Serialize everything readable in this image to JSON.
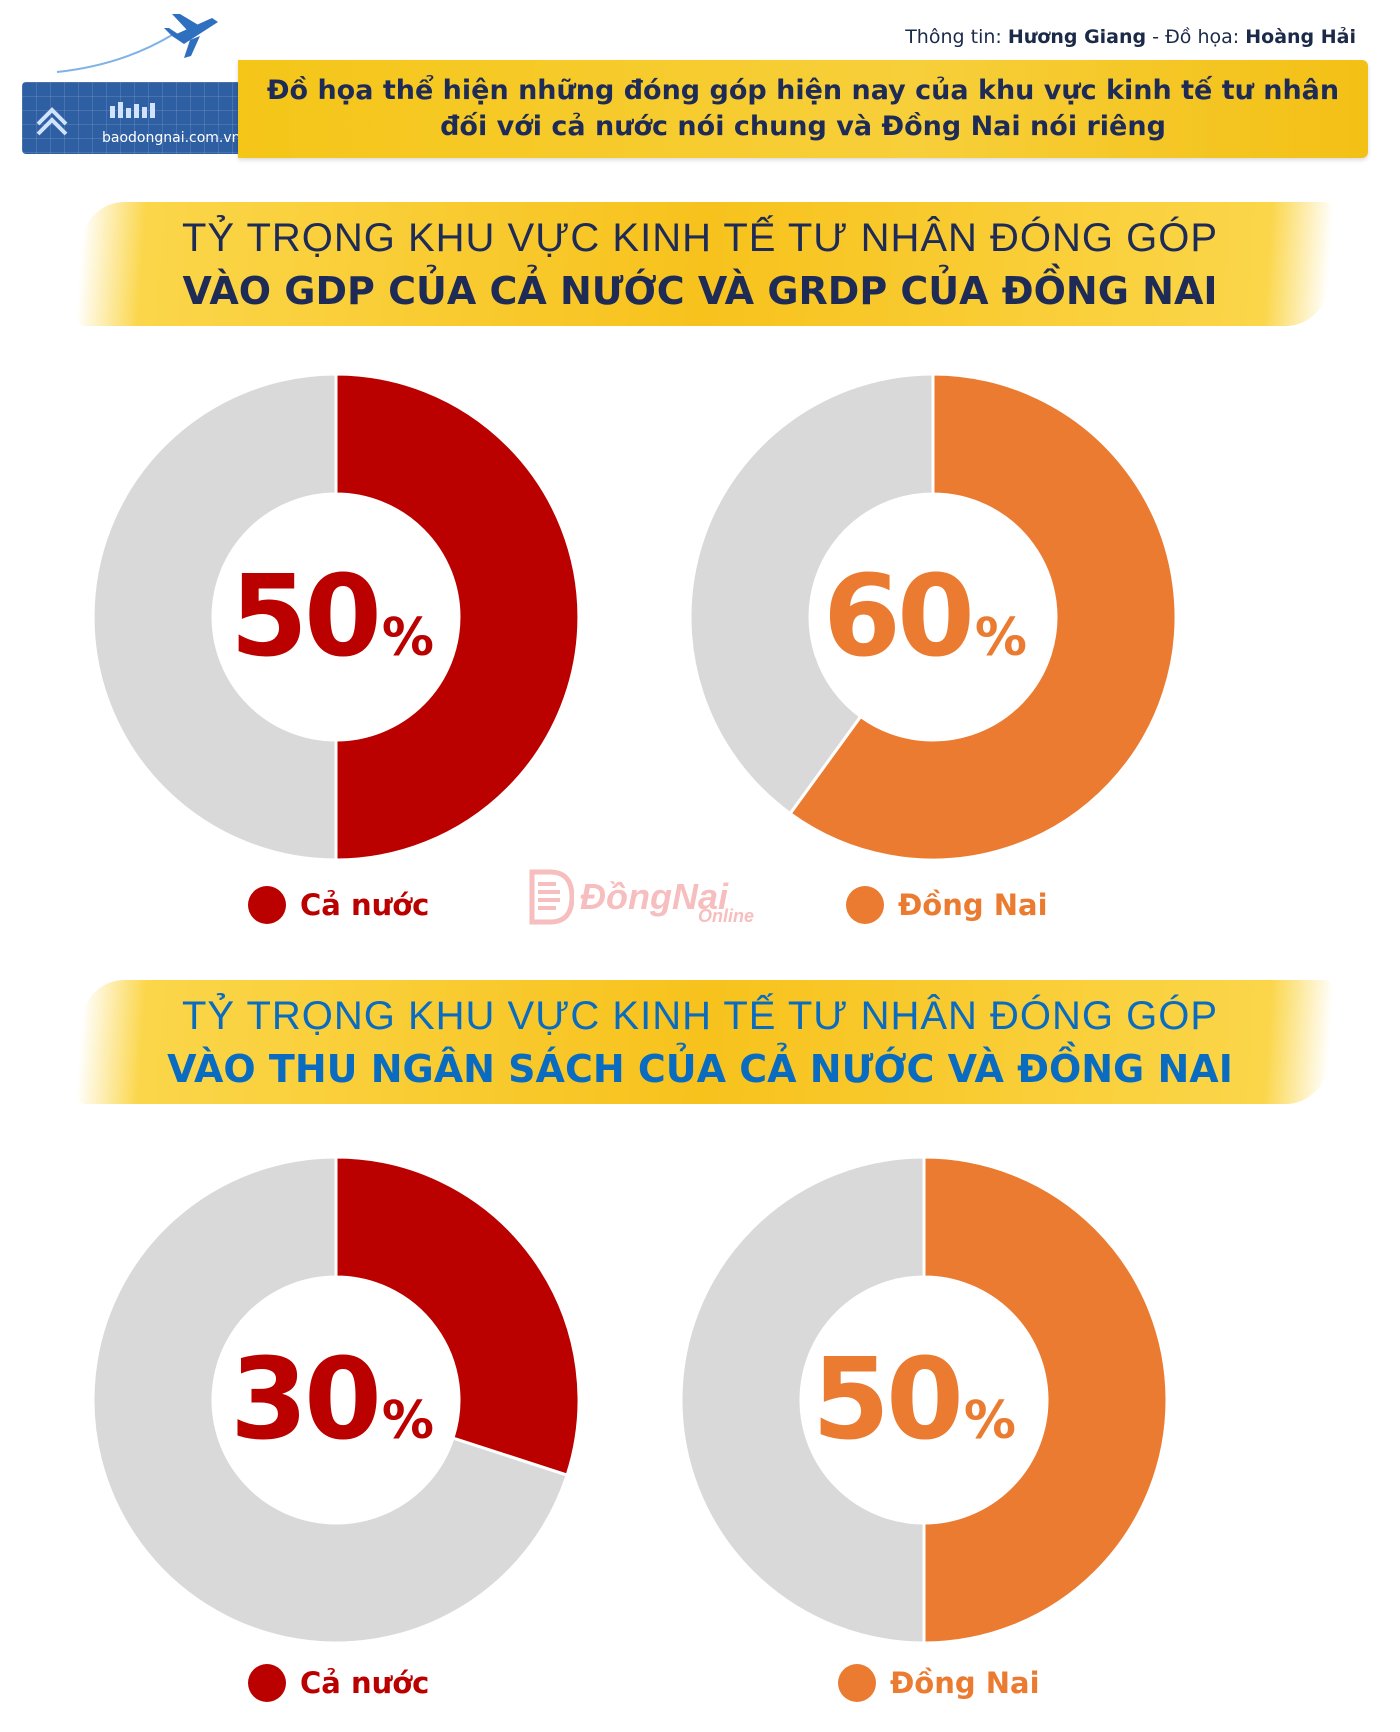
{
  "header": {
    "credit_info_label": "Thông tin:",
    "credit_info_name": "Hương Giang",
    "credit_sep": "-",
    "credit_graphics_label": "Đồ họa:",
    "credit_graphics_name": "Hoàng Hải",
    "site": "baodongnai.com.vn",
    "banner_line1": "Đồ họa thể hiện những đóng góp hiện nay của khu vực kinh tế tư nhân",
    "banner_line2": "đối với cả nước nói chung và Đồng Nai nói riêng"
  },
  "colors": {
    "national": "#bb0000",
    "dongnai": "#ea7b30",
    "remainder": "#d9d9d9",
    "title_dark": "#1e2b57",
    "title_blue": "#0a6cc0",
    "banner": "#f5c518"
  },
  "sections": [
    {
      "title_line1": "TỶ TRỌNG KHU VỰC KINH TẾ TƯ NHÂN ĐÓNG GÓP",
      "title_line2": "VÀO GDP CỦA CẢ NƯỚC VÀ GRDP CỦA ĐỒNG NAI",
      "legend": [
        "Cả nước",
        "Đồng Nai"
      ]
    },
    {
      "title_line1": "TỶ TRỌNG KHU VỰC KINH TẾ TƯ NHÂN ĐÓNG GÓP",
      "title_line2": "VÀO THU NGÂN SÁCH CỦA CẢ NƯỚC VÀ ĐỒNG NAI",
      "legend": [
        "Cả nước",
        "Đồng Nai"
      ]
    }
  ],
  "watermark": {
    "name": "ĐồngNai",
    "sub": "Online"
  },
  "chart_data": [
    {
      "type": "pie",
      "series": [
        {
          "name": "Cả nước",
          "value": 50
        }
      ],
      "label": "50",
      "unit": "%"
    },
    {
      "type": "pie",
      "series": [
        {
          "name": "Đồng Nai",
          "value": 60
        }
      ],
      "label": "60",
      "unit": "%"
    },
    {
      "type": "pie",
      "series": [
        {
          "name": "Cả nước",
          "value": 30
        }
      ],
      "label": "30",
      "unit": "%"
    },
    {
      "type": "pie",
      "series": [
        {
          "name": "Đồng Nai",
          "value": 50
        }
      ],
      "label": "50",
      "unit": "%"
    }
  ]
}
